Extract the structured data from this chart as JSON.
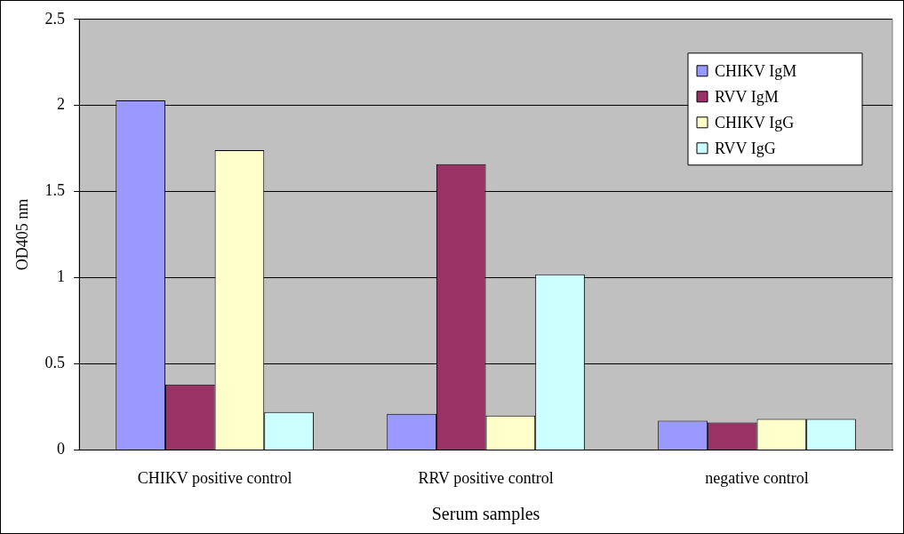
{
  "chart_data": {
    "type": "bar",
    "xlabel": "Serum samples",
    "ylabel": "OD405 nm",
    "categories": [
      "CHIKV positive control",
      "RRV positive control",
      "negative control"
    ],
    "series": [
      {
        "name": "CHIKV IgM",
        "color": "#9999ff",
        "values": [
          2.03,
          0.21,
          0.17
        ]
      },
      {
        "name": "RVV IgM",
        "color": "#993366",
        "values": [
          0.38,
          1.66,
          0.16
        ]
      },
      {
        "name": "CHIKV IgG",
        "color": "#ffffcc",
        "values": [
          1.74,
          0.2,
          0.18
        ]
      },
      {
        "name": "RVV IgG",
        "color": "#ccffff",
        "values": [
          0.22,
          1.02,
          0.18
        ]
      }
    ],
    "ylim": [
      0,
      2.5
    ],
    "yticks": [
      0,
      0.5,
      1,
      1.5,
      2,
      2.5
    ],
    "grid": "y",
    "legend": "top right"
  }
}
